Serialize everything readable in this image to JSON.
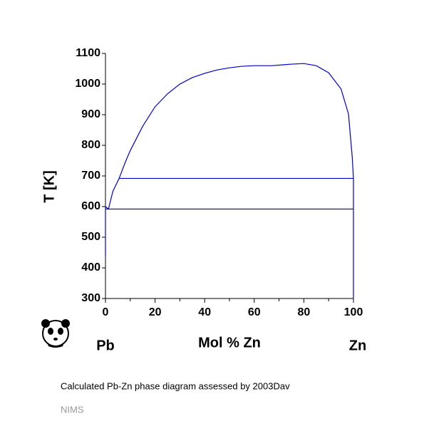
{
  "chart_data": {
    "type": "line",
    "xlabel": "Mol % Zn",
    "ylabel": "T [K]",
    "left_label": "Pb",
    "right_label": "Zn",
    "caption": "Calculated Pb-Zn phase diagram assessed by 2003Dav",
    "credit": "NIMS",
    "xlim": [
      0,
      100
    ],
    "ylim": [
      300,
      1100
    ],
    "xticks": [
      0,
      20,
      40,
      60,
      80,
      100
    ],
    "xminorticks": [
      10,
      30,
      50,
      70,
      90
    ],
    "yticks": [
      300,
      400,
      500,
      600,
      700,
      800,
      900,
      1000,
      1100
    ],
    "series": [
      {
        "color": "#0000cc",
        "x": [
          0,
          1.2,
          3,
          5.5,
          8,
          10,
          15,
          20,
          25,
          30,
          35,
          40,
          45,
          50,
          55,
          60,
          67,
          72,
          75,
          80,
          85,
          90,
          95,
          98,
          99.5,
          100
        ],
        "values": [
          600,
          592,
          650,
          692,
          745,
          783,
          862,
          926,
          968,
          1000,
          1021,
          1035,
          1046,
          1053,
          1058,
          1060,
          1060,
          1063,
          1065,
          1067,
          1060,
          1037,
          984,
          902,
          763,
          692
        ]
      },
      {
        "color": "#0000cc",
        "x": [
          5.5,
          100
        ],
        "values": [
          692,
          692
        ]
      },
      {
        "color": "#0000cc",
        "x": [
          0,
          100
        ],
        "values": [
          592,
          592
        ]
      },
      {
        "color": "#0000cc",
        "x": [
          0,
          0
        ],
        "values": [
          440,
          600
        ]
      },
      {
        "color": "#0000cc",
        "x": [
          100,
          100
        ],
        "values": [
          300,
          692
        ]
      }
    ]
  }
}
